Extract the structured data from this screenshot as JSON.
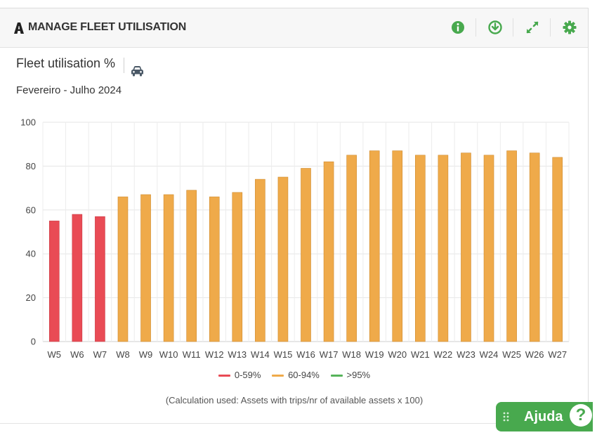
{
  "header": {
    "title": "MANAGE FLEET UTILISATION",
    "tools": [
      {
        "icon": "info-icon"
      },
      {
        "icon": "download-icon"
      },
      {
        "icon": "expand-icon"
      },
      {
        "icon": "gear-icon"
      }
    ],
    "accent_color": "#48a94e"
  },
  "chart_data": {
    "type": "bar",
    "title": "Fleet utilisation %",
    "subtitle": "Fevereiro - Julho 2024",
    "categories": [
      "W5",
      "W6",
      "W7",
      "W8",
      "W9",
      "W10",
      "W11",
      "W12",
      "W13",
      "W14",
      "W15",
      "W16",
      "W17",
      "W18",
      "W19",
      "W20",
      "W21",
      "W22",
      "W23",
      "W24",
      "W25",
      "W26",
      "W27"
    ],
    "values": [
      55,
      58,
      57,
      66,
      67,
      67,
      69,
      66,
      68,
      74,
      75,
      79,
      82,
      85,
      87,
      87,
      85,
      85,
      86,
      85,
      87,
      86,
      84
    ],
    "ylim": [
      0,
      100
    ],
    "yticks": [
      0,
      20,
      40,
      60,
      80,
      100
    ],
    "grid": true,
    "legend_position": "bottom",
    "legend": [
      {
        "label": "0-59%",
        "color": "#e94b55"
      },
      {
        "label": "60-94%",
        "color": "#efaa4a"
      },
      {
        "label": ">95%",
        "color": "#56b35a"
      }
    ]
  },
  "note": "(Calculation used: Assets with trips/nr of available assets x 100)",
  "help": {
    "label": "Ajuda",
    "symbol": "?"
  }
}
